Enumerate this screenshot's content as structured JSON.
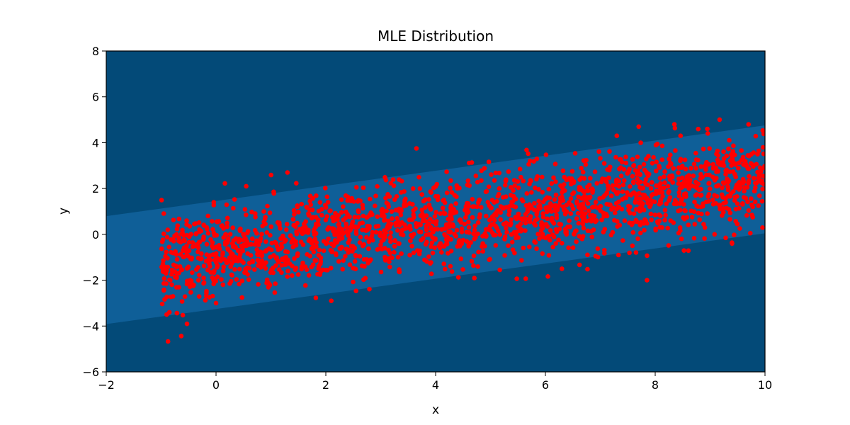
{
  "chart_data": {
    "type": "scatter",
    "title": "MLE Distribution",
    "xlabel": "x",
    "ylabel": "y",
    "xlim": [
      -2,
      10
    ],
    "ylim": [
      -6,
      8
    ],
    "x_ticks": [
      "−2",
      "0",
      "2",
      "4",
      "6",
      "8",
      "10"
    ],
    "y_ticks": [
      "−6",
      "−4",
      "−2",
      "0",
      "2",
      "4",
      "6",
      "8"
    ],
    "grid": false,
    "legend": "none",
    "background": {
      "type": "filled-contour",
      "model": "linear mean with constant spread",
      "mean_line": {
        "intercept": -0.9,
        "slope": 0.33
      },
      "sigma": 1.0,
      "levels": 8,
      "colormap": [
        "#f5eef6",
        "#e3dfee",
        "#cdd0e5",
        "#a9bfdc",
        "#7eadd1",
        "#5093c3",
        "#2a79b4",
        "#0f5f98",
        "#034a78"
      ]
    },
    "series": [
      {
        "marker_color": "#ff0000",
        "point_count": 2000,
        "x_range": [
          -1,
          10
        ],
        "trend": {
          "intercept": -0.9,
          "slope": 0.33
        },
        "noise_sd": 1.0,
        "sample_points": [
          {
            "x": -0.9,
            "y": -3.5
          },
          {
            "x": -0.85,
            "y": -3.4
          },
          {
            "x": 0.0,
            "y": -3.0
          },
          {
            "x": 0.55,
            "y": 2.1
          },
          {
            "x": 1.3,
            "y": 2.7
          },
          {
            "x": 3.65,
            "y": 3.75
          },
          {
            "x": 7.3,
            "y": 4.3
          },
          {
            "x": 7.7,
            "y": 4.7
          },
          {
            "x": 8.35,
            "y": 4.8
          },
          {
            "x": 8.95,
            "y": 4.6
          },
          {
            "x": 9.7,
            "y": 4.8
          },
          {
            "x": 7.85,
            "y": -2.0
          },
          {
            "x": 6.3,
            "y": -1.5
          },
          {
            "x": 2.1,
            "y": -2.9
          },
          {
            "x": 9.4,
            "y": -0.4
          }
        ]
      }
    ]
  }
}
